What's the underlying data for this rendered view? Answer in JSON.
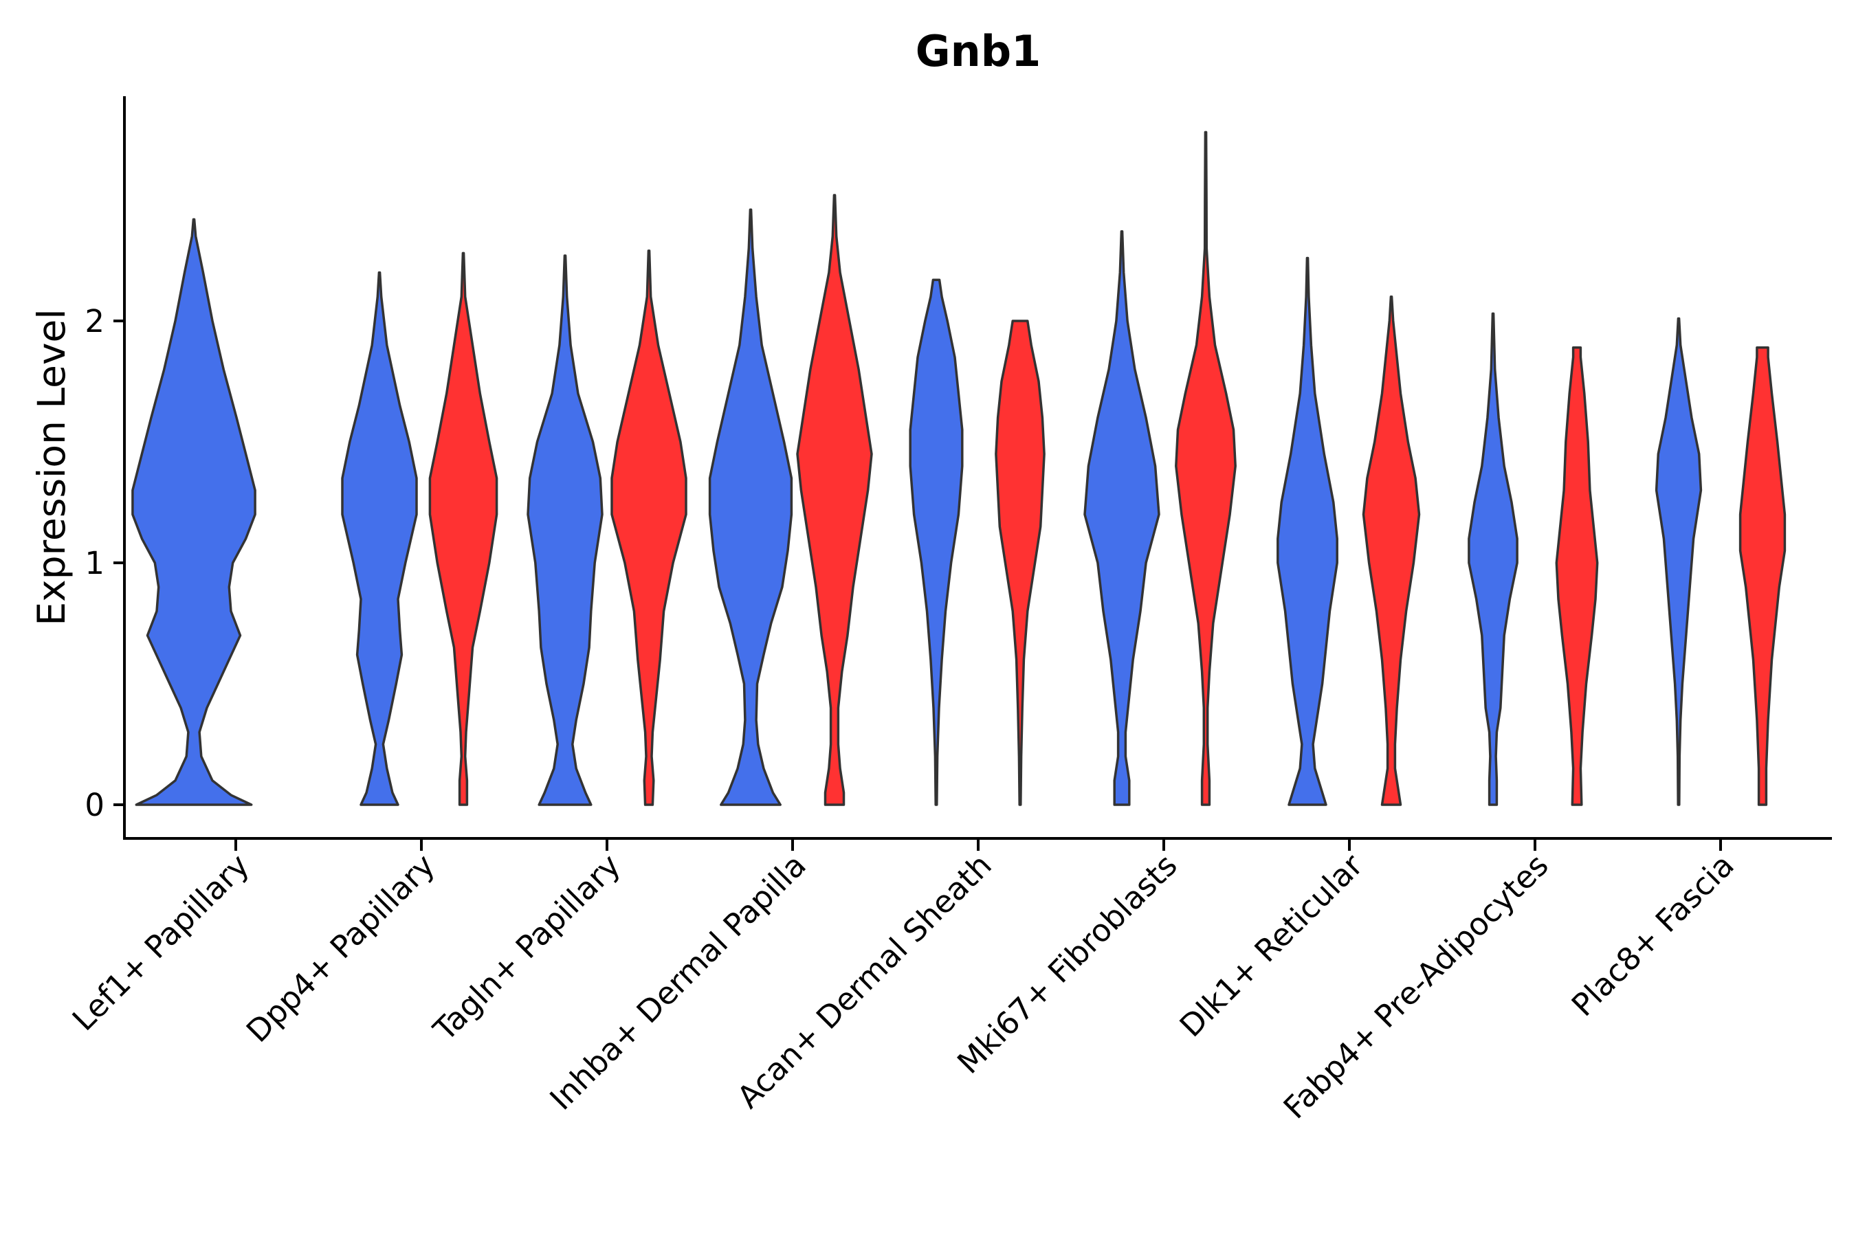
{
  "chart_data": {
    "type": "violin",
    "title": "Gnb1",
    "xlabel": "",
    "ylabel": "Expression Level",
    "ylim": [
      -0.14,
      2.9
    ],
    "yticks": [
      0,
      1,
      2
    ],
    "categories": [
      "Lef1+ Papillary",
      "Dpp4+ Papillary",
      "Tagln+ Papillary",
      "Inhba+ Dermal Papilla",
      "Acan+ Dermal Sheath",
      "Mki67+ Fibroblasts",
      "Dlk1+ Reticular",
      "Fabp4+ Pre-Adipocytes",
      "Plac8+ Fascia"
    ],
    "series": [
      {
        "name": "group1",
        "color": "#4470EB"
      },
      {
        "name": "group2",
        "color": "#FF3232"
      }
    ],
    "violins": [
      {
        "category": 0,
        "group": "group1",
        "ymax": 2.42,
        "flat_top": false,
        "profile": [
          [
            0,
            0.31
          ],
          [
            0.04,
            0.2
          ],
          [
            0.1,
            0.1
          ],
          [
            0.2,
            0.04
          ],
          [
            0.3,
            0.03
          ],
          [
            0.4,
            0.07
          ],
          [
            0.5,
            0.13
          ],
          [
            0.6,
            0.19
          ],
          [
            0.7,
            0.25
          ],
          [
            0.8,
            0.2
          ],
          [
            0.9,
            0.19
          ],
          [
            1.0,
            0.21
          ],
          [
            1.1,
            0.28
          ],
          [
            1.2,
            0.33
          ],
          [
            1.3,
            0.33
          ],
          [
            1.45,
            0.28
          ],
          [
            1.6,
            0.23
          ],
          [
            1.8,
            0.16
          ],
          [
            2.0,
            0.1
          ],
          [
            2.2,
            0.05
          ],
          [
            2.35,
            0.01
          ],
          [
            2.42,
            0
          ]
        ]
      },
      {
        "category": 1,
        "group": "group1",
        "ymax": 2.2,
        "flat_top": false,
        "profile": [
          [
            0,
            0.1
          ],
          [
            0.05,
            0.07
          ],
          [
            0.15,
            0.04
          ],
          [
            0.25,
            0.02
          ],
          [
            0.35,
            0.05
          ],
          [
            0.5,
            0.09
          ],
          [
            0.62,
            0.12
          ],
          [
            0.72,
            0.11
          ],
          [
            0.85,
            0.1
          ],
          [
            1.0,
            0.14
          ],
          [
            1.2,
            0.2
          ],
          [
            1.35,
            0.2
          ],
          [
            1.5,
            0.16
          ],
          [
            1.65,
            0.11
          ],
          [
            1.9,
            0.04
          ],
          [
            2.1,
            0.01
          ],
          [
            2.2,
            0
          ]
        ]
      },
      {
        "category": 1,
        "group": "group2",
        "ymax": 2.28,
        "flat_top": false,
        "profile": [
          [
            0,
            0.02
          ],
          [
            0.1,
            0.02
          ],
          [
            0.2,
            0.01
          ],
          [
            0.3,
            0.015
          ],
          [
            0.45,
            0.03
          ],
          [
            0.55,
            0.04
          ],
          [
            0.65,
            0.05
          ],
          [
            0.8,
            0.09
          ],
          [
            1.0,
            0.14
          ],
          [
            1.2,
            0.18
          ],
          [
            1.35,
            0.18
          ],
          [
            1.5,
            0.14
          ],
          [
            1.7,
            0.09
          ],
          [
            1.9,
            0.05
          ],
          [
            2.1,
            0.01
          ],
          [
            2.28,
            0
          ]
        ]
      },
      {
        "category": 2,
        "group": "group1",
        "ymax": 2.27,
        "flat_top": false,
        "profile": [
          [
            0,
            0.14
          ],
          [
            0.05,
            0.11
          ],
          [
            0.15,
            0.06
          ],
          [
            0.25,
            0.04
          ],
          [
            0.35,
            0.06
          ],
          [
            0.5,
            0.1
          ],
          [
            0.65,
            0.13
          ],
          [
            0.8,
            0.14
          ],
          [
            1.0,
            0.16
          ],
          [
            1.2,
            0.2
          ],
          [
            1.35,
            0.19
          ],
          [
            1.5,
            0.15
          ],
          [
            1.7,
            0.07
          ],
          [
            1.9,
            0.03
          ],
          [
            2.1,
            0.01
          ],
          [
            2.27,
            0
          ]
        ]
      },
      {
        "category": 2,
        "group": "group2",
        "ymax": 2.29,
        "flat_top": false,
        "profile": [
          [
            0,
            0.02
          ],
          [
            0.1,
            0.025
          ],
          [
            0.2,
            0.015
          ],
          [
            0.3,
            0.02
          ],
          [
            0.45,
            0.04
          ],
          [
            0.6,
            0.06
          ],
          [
            0.8,
            0.08
          ],
          [
            1.0,
            0.13
          ],
          [
            1.2,
            0.2
          ],
          [
            1.35,
            0.2
          ],
          [
            1.5,
            0.17
          ],
          [
            1.7,
            0.11
          ],
          [
            1.9,
            0.05
          ],
          [
            2.1,
            0.01
          ],
          [
            2.29,
            0
          ]
        ]
      },
      {
        "category": 3,
        "group": "group1",
        "ymax": 2.46,
        "flat_top": false,
        "profile": [
          [
            0,
            0.16
          ],
          [
            0.05,
            0.12
          ],
          [
            0.15,
            0.07
          ],
          [
            0.25,
            0.04
          ],
          [
            0.35,
            0.03
          ],
          [
            0.5,
            0.035
          ],
          [
            0.62,
            0.07
          ],
          [
            0.75,
            0.11
          ],
          [
            0.9,
            0.17
          ],
          [
            1.05,
            0.2
          ],
          [
            1.2,
            0.22
          ],
          [
            1.35,
            0.22
          ],
          [
            1.5,
            0.18
          ],
          [
            1.7,
            0.12
          ],
          [
            1.9,
            0.06
          ],
          [
            2.1,
            0.03
          ],
          [
            2.3,
            0.01
          ],
          [
            2.46,
            0
          ]
        ]
      },
      {
        "category": 3,
        "group": "group2",
        "ymax": 2.52,
        "flat_top": false,
        "profile": [
          [
            0,
            0.05
          ],
          [
            0.05,
            0.05
          ],
          [
            0.15,
            0.03
          ],
          [
            0.25,
            0.02
          ],
          [
            0.4,
            0.02
          ],
          [
            0.55,
            0.04
          ],
          [
            0.7,
            0.07
          ],
          [
            0.9,
            0.1
          ],
          [
            1.1,
            0.14
          ],
          [
            1.3,
            0.18
          ],
          [
            1.45,
            0.2
          ],
          [
            1.6,
            0.17
          ],
          [
            1.8,
            0.13
          ],
          [
            2.0,
            0.08
          ],
          [
            2.2,
            0.03
          ],
          [
            2.35,
            0.01
          ],
          [
            2.52,
            0
          ]
        ]
      },
      {
        "category": 4,
        "group": "group1",
        "ymax": 2.17,
        "flat_top": true,
        "profile": [
          [
            0,
            0.003
          ],
          [
            0.2,
            0.006
          ],
          [
            0.4,
            0.015
          ],
          [
            0.6,
            0.03
          ],
          [
            0.8,
            0.05
          ],
          [
            1.0,
            0.08
          ],
          [
            1.2,
            0.12
          ],
          [
            1.4,
            0.14
          ],
          [
            1.55,
            0.14
          ],
          [
            1.7,
            0.12
          ],
          [
            1.85,
            0.1
          ],
          [
            2.0,
            0.06
          ],
          [
            2.1,
            0.03
          ],
          [
            2.17,
            0.017
          ]
        ]
      },
      {
        "category": 4,
        "group": "group2",
        "ymax": 2.0,
        "flat_top": true,
        "profile": [
          [
            0,
            0.003
          ],
          [
            0.2,
            0.006
          ],
          [
            0.4,
            0.012
          ],
          [
            0.6,
            0.02
          ],
          [
            0.8,
            0.04
          ],
          [
            1.0,
            0.08
          ],
          [
            1.15,
            0.11
          ],
          [
            1.3,
            0.12
          ],
          [
            1.45,
            0.13
          ],
          [
            1.6,
            0.12
          ],
          [
            1.75,
            0.1
          ],
          [
            1.9,
            0.06
          ],
          [
            2.0,
            0.04
          ]
        ]
      },
      {
        "category": 5,
        "group": "group1",
        "ymax": 2.37,
        "flat_top": false,
        "profile": [
          [
            0,
            0.04
          ],
          [
            0.1,
            0.04
          ],
          [
            0.2,
            0.02
          ],
          [
            0.3,
            0.02
          ],
          [
            0.45,
            0.04
          ],
          [
            0.6,
            0.06
          ],
          [
            0.8,
            0.1
          ],
          [
            1.0,
            0.13
          ],
          [
            1.2,
            0.2
          ],
          [
            1.4,
            0.18
          ],
          [
            1.6,
            0.13
          ],
          [
            1.8,
            0.07
          ],
          [
            2.0,
            0.03
          ],
          [
            2.2,
            0.01
          ],
          [
            2.37,
            0
          ]
        ]
      },
      {
        "category": 5,
        "group": "group2",
        "ymax": 2.78,
        "flat_top": false,
        "profile": [
          [
            0,
            0.02
          ],
          [
            0.1,
            0.02
          ],
          [
            0.25,
            0.01
          ],
          [
            0.4,
            0.01
          ],
          [
            0.55,
            0.02
          ],
          [
            0.75,
            0.04
          ],
          [
            1.0,
            0.09
          ],
          [
            1.2,
            0.13
          ],
          [
            1.4,
            0.16
          ],
          [
            1.55,
            0.15
          ],
          [
            1.7,
            0.11
          ],
          [
            1.9,
            0.05
          ],
          [
            2.1,
            0.02
          ],
          [
            2.3,
            0.005
          ],
          [
            2.5,
            0.004
          ],
          [
            2.78,
            0
          ]
        ]
      },
      {
        "category": 6,
        "group": "group1",
        "ymax": 2.26,
        "flat_top": false,
        "profile": [
          [
            0,
            0.1
          ],
          [
            0.05,
            0.08
          ],
          [
            0.15,
            0.04
          ],
          [
            0.25,
            0.03
          ],
          [
            0.35,
            0.05
          ],
          [
            0.5,
            0.08
          ],
          [
            0.65,
            0.1
          ],
          [
            0.8,
            0.12
          ],
          [
            1.0,
            0.16
          ],
          [
            1.1,
            0.16
          ],
          [
            1.25,
            0.14
          ],
          [
            1.45,
            0.09
          ],
          [
            1.7,
            0.04
          ],
          [
            1.9,
            0.02
          ],
          [
            2.1,
            0.007
          ],
          [
            2.26,
            0
          ]
        ]
      },
      {
        "category": 6,
        "group": "group2",
        "ymax": 2.1,
        "flat_top": false,
        "profile": [
          [
            0,
            0.05
          ],
          [
            0.05,
            0.04
          ],
          [
            0.15,
            0.02
          ],
          [
            0.25,
            0.02
          ],
          [
            0.4,
            0.03
          ],
          [
            0.6,
            0.05
          ],
          [
            0.8,
            0.08
          ],
          [
            1.0,
            0.12
          ],
          [
            1.2,
            0.15
          ],
          [
            1.35,
            0.13
          ],
          [
            1.5,
            0.09
          ],
          [
            1.7,
            0.05
          ],
          [
            1.85,
            0.03
          ],
          [
            2.0,
            0.01
          ],
          [
            2.1,
            0
          ]
        ]
      },
      {
        "category": 7,
        "group": "group1",
        "ymax": 2.03,
        "flat_top": false,
        "profile": [
          [
            0,
            0.02
          ],
          [
            0.1,
            0.02
          ],
          [
            0.2,
            0.015
          ],
          [
            0.3,
            0.02
          ],
          [
            0.4,
            0.04
          ],
          [
            0.55,
            0.05
          ],
          [
            0.7,
            0.06
          ],
          [
            0.85,
            0.09
          ],
          [
            1.0,
            0.13
          ],
          [
            1.1,
            0.13
          ],
          [
            1.25,
            0.1
          ],
          [
            1.4,
            0.06
          ],
          [
            1.6,
            0.03
          ],
          [
            1.8,
            0.01
          ],
          [
            2.03,
            0
          ]
        ]
      },
      {
        "category": 7,
        "group": "group2",
        "ymax": 1.89,
        "flat_top": true,
        "profile": [
          [
            0,
            0.025
          ],
          [
            0.15,
            0.02
          ],
          [
            0.3,
            0.03
          ],
          [
            0.5,
            0.05
          ],
          [
            0.7,
            0.08
          ],
          [
            0.85,
            0.1
          ],
          [
            1.0,
            0.11
          ],
          [
            1.15,
            0.09
          ],
          [
            1.3,
            0.07
          ],
          [
            1.5,
            0.06
          ],
          [
            1.7,
            0.04
          ],
          [
            1.85,
            0.02
          ],
          [
            1.89,
            0.02
          ]
        ]
      },
      {
        "category": 8,
        "group": "group1",
        "ymax": 2.01,
        "flat_top": false,
        "profile": [
          [
            0,
            0.003
          ],
          [
            0.2,
            0.005
          ],
          [
            0.35,
            0.01
          ],
          [
            0.5,
            0.02
          ],
          [
            0.7,
            0.04
          ],
          [
            0.9,
            0.06
          ],
          [
            1.1,
            0.08
          ],
          [
            1.3,
            0.12
          ],
          [
            1.45,
            0.11
          ],
          [
            1.6,
            0.07
          ],
          [
            1.75,
            0.04
          ],
          [
            1.9,
            0.01
          ],
          [
            2.01,
            0
          ]
        ]
      },
      {
        "category": 8,
        "group": "group2",
        "ymax": 1.89,
        "flat_top": true,
        "profile": [
          [
            0,
            0.02
          ],
          [
            0.15,
            0.02
          ],
          [
            0.35,
            0.03
          ],
          [
            0.6,
            0.05
          ],
          [
            0.75,
            0.07
          ],
          [
            0.9,
            0.09
          ],
          [
            1.05,
            0.12
          ],
          [
            1.2,
            0.12
          ],
          [
            1.35,
            0.1
          ],
          [
            1.5,
            0.08
          ],
          [
            1.7,
            0.05
          ],
          [
            1.85,
            0.03
          ],
          [
            1.89,
            0.03
          ]
        ]
      }
    ]
  }
}
